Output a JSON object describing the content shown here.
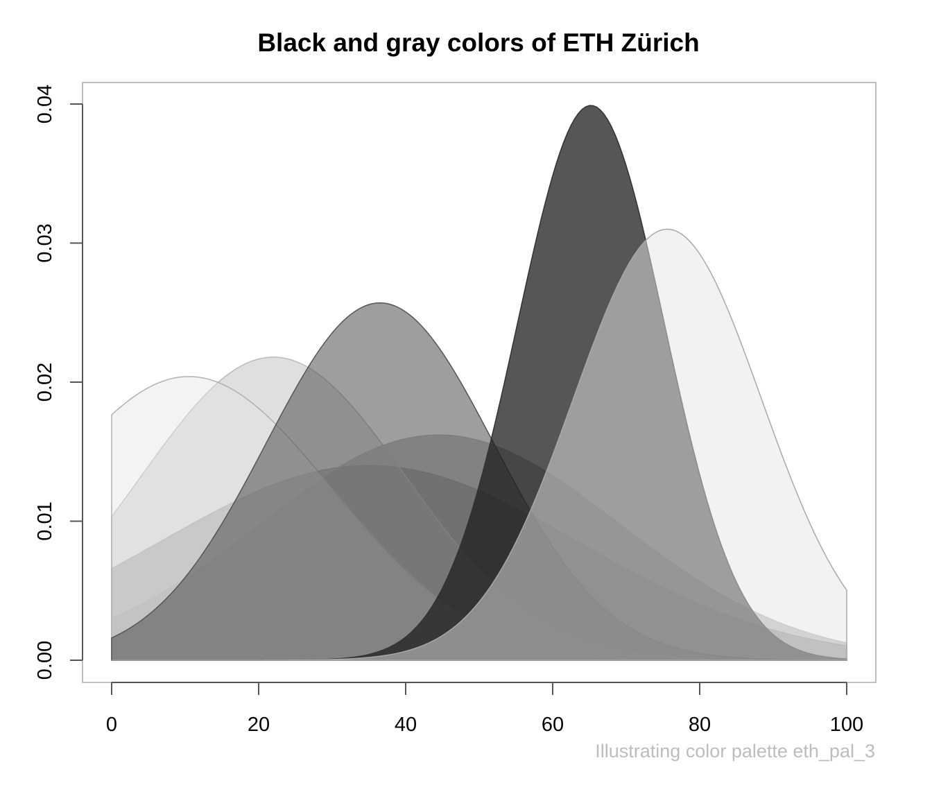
{
  "chart_data": {
    "type": "area",
    "title": "Black and gray colors of ETH Zürich",
    "caption": "Illustrating color palette eth_pal_3",
    "xlabel": "",
    "ylabel": "",
    "xlim": [
      0,
      100
    ],
    "ylim": [
      0,
      0.04
    ],
    "x_ticks": [
      0,
      20,
      40,
      60,
      80,
      100
    ],
    "y_ticks": [
      0.0,
      0.01,
      0.02,
      0.03,
      0.04
    ],
    "x_tick_labels": [
      "0",
      "20",
      "40",
      "60",
      "80",
      "100"
    ],
    "y_tick_labels": [
      "0.00",
      "0.01",
      "0.02",
      "0.03",
      "0.04"
    ],
    "grid": false,
    "series": [
      {
        "mean": 35,
        "sd": 28.5,
        "peak": 0.014,
        "fill": "#6F6F6F",
        "stroke": "#9A9A9A",
        "opacity": 0.55
      },
      {
        "mean": 44.5,
        "sd": 24.5,
        "peak": 0.0162,
        "fill": "#8C8C8C",
        "stroke": "#B5B5B5",
        "opacity": 0.55
      },
      {
        "mean": 22,
        "sd": 18,
        "peak": 0.0218,
        "fill": "#B7B7B7",
        "stroke": "#BBBBBB",
        "opacity": 0.45
      },
      {
        "mean": 10.5,
        "sd": 19.5,
        "peak": 0.0204,
        "fill": "#E4E4E4",
        "stroke": "#B0B0B0",
        "opacity": 0.45
      },
      {
        "mean": 36.5,
        "sd": 15.5,
        "peak": 0.0257,
        "fill": "#4E4E4E",
        "stroke": "#555555",
        "opacity": 0.55
      },
      {
        "mean": 65.2,
        "sd": 10,
        "peak": 0.0399,
        "fill": "#1E1E1E",
        "stroke": "#333333",
        "opacity": 0.75
      },
      {
        "mean": 75.6,
        "sd": 12.8,
        "peak": 0.031,
        "fill": "#E6E6E6",
        "stroke": "#A8A8A8",
        "opacity": 0.5
      }
    ],
    "colors": {
      "caption": "#BDBDBD",
      "frame": "#BFBFBF",
      "axis": "#555555"
    }
  }
}
